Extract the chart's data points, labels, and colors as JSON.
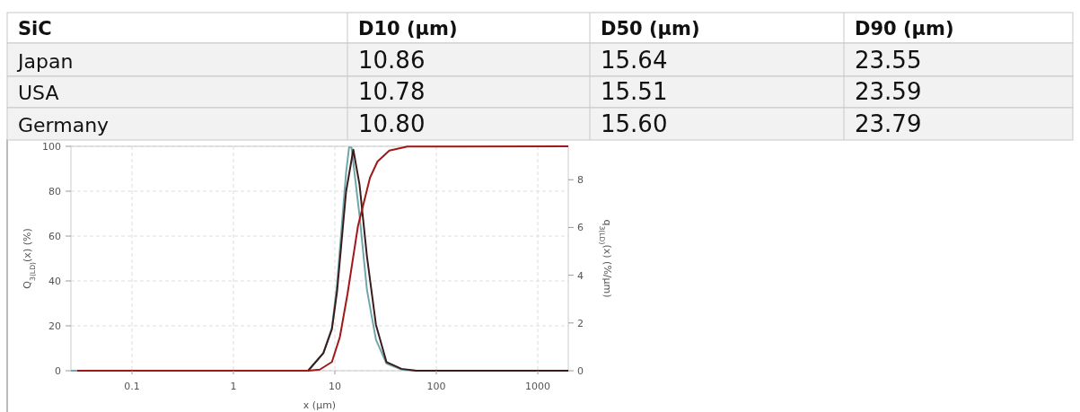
{
  "chart_data": [
    {
      "type": "other",
      "categories": [
        "SiC",
        "D10 (µm)",
        "D50 (µm)",
        "D90 (µm)"
      ],
      "y_categories": [
        "Japan",
        "USA",
        "Germany"
      ],
      "cell_labels": [
        [
          "10.86",
          "15.64",
          "23.55"
        ],
        [
          "10.78",
          "15.51",
          "23.59"
        ],
        [
          "10.80",
          "15.60",
          "23.79"
        ]
      ]
    },
    {
      "type": "line",
      "xlabel": "x (µm)",
      "ylabel": "Q$_{3(LD)}$(x)  (%)",
      "y2label": "q$_{3(LD)}$(x)  (%/µm)",
      "log": "x",
      "grid": true,
      "marker": "none",
      "line_style": "solid",
      "xlim": [
        0.025,
        2000
      ],
      "xticks": [
        0.1,
        1,
        10,
        100,
        1000
      ],
      "ylim": [
        0,
        100
      ],
      "yticks": [
        0,
        20,
        40,
        60,
        80,
        100
      ],
      "y2lim": [
        0,
        9.4
      ],
      "y2ticks": [
        0,
        2,
        4,
        6,
        8
      ],
      "series": [
        {
          "color": "#6fa8ab",
          "axis": "y2",
          "x": [
            0.025,
            5.45,
            7.7,
            9.35,
            10.5,
            12.9,
            13.8,
            14.6,
            17.5,
            20.7,
            25.4,
            32.3,
            45.3,
            63.6,
            2000
          ],
          "values": [
            0,
            0,
            0.74,
            1.8,
            3.6,
            8.3,
            9.35,
            9.35,
            6.5,
            3.4,
            1.3,
            0.3,
            0.05,
            0,
            0
          ]
        },
        {
          "color": "#3b1c1c",
          "axis": "y2",
          "x": [
            0.029,
            5.45,
            7.7,
            9.35,
            10.5,
            12.9,
            15.2,
            17.5,
            20.7,
            25.4,
            32.3,
            45.3,
            63.6,
            2000
          ],
          "values": [
            0,
            0,
            0.74,
            1.74,
            3.3,
            7.5,
            9.26,
            7.8,
            4.8,
            1.93,
            0.36,
            0.08,
            0,
            0
          ]
        },
        {
          "color": "#a01818",
          "x": [
            0.029,
            5.45,
            7.1,
            9.35,
            11.2,
            13.3,
            16.9,
            22.2,
            26.3,
            34.4,
            52,
            2000
          ],
          "values": [
            0,
            0,
            0.5,
            3.9,
            15,
            34,
            64.5,
            86,
            93.2,
            98.1,
            99.9,
            100
          ]
        }
      ]
    }
  ]
}
